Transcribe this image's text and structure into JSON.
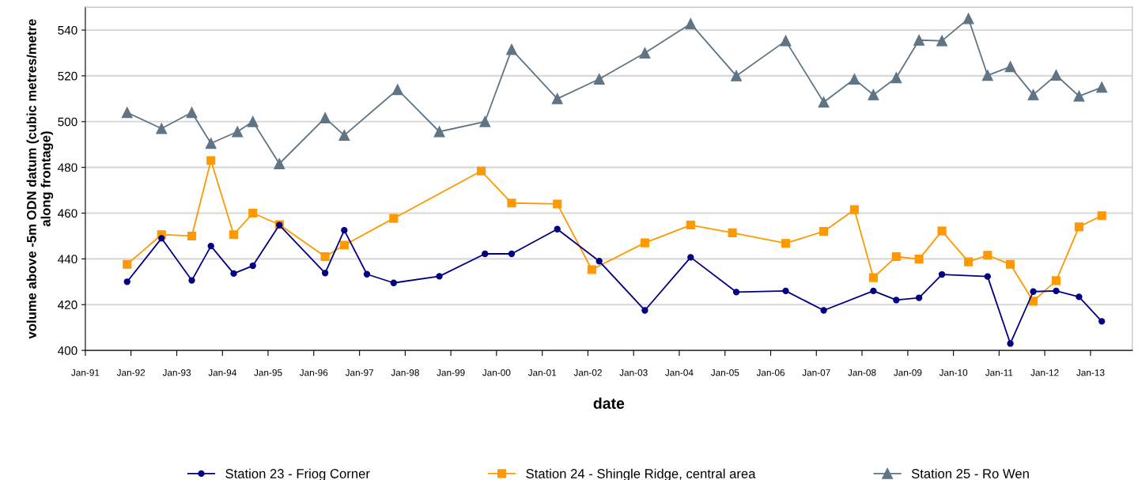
{
  "chart_data": {
    "type": "line",
    "xlabel": "date",
    "ylabel": "volume above -5m ODN datum (cubic metres/metre along frontage)",
    "xlim": [
      "1991-01",
      "2013-12"
    ],
    "xticks": [
      {
        "value": "1991-01",
        "label": "Jan-91"
      },
      {
        "value": "1992-01",
        "label": "Jan-92"
      },
      {
        "value": "1993-01",
        "label": "Jan-93"
      },
      {
        "value": "1994-01",
        "label": "Jan-94"
      },
      {
        "value": "1995-01",
        "label": "Jan-95"
      },
      {
        "value": "1996-01",
        "label": "Jan-96"
      },
      {
        "value": "1997-01",
        "label": "Jan-97"
      },
      {
        "value": "1998-01",
        "label": "Jan-98"
      },
      {
        "value": "1999-01",
        "label": "Jan-99"
      },
      {
        "value": "2000-01",
        "label": "Jan-00"
      },
      {
        "value": "2001-01",
        "label": "Jan-01"
      },
      {
        "value": "2002-01",
        "label": "Jan-02"
      },
      {
        "value": "2003-01",
        "label": "Jan-03"
      },
      {
        "value": "2004-01",
        "label": "Jan-04"
      },
      {
        "value": "2005-01",
        "label": "Jan-05"
      },
      {
        "value": "2006-01",
        "label": "Jan-06"
      },
      {
        "value": "2007-01",
        "label": "Jan-07"
      },
      {
        "value": "2008-01",
        "label": "Jan-08"
      },
      {
        "value": "2009-01",
        "label": "Jan-09"
      },
      {
        "value": "2010-01",
        "label": "Jan-10"
      },
      {
        "value": "2011-01",
        "label": "Jan-11"
      },
      {
        "value": "2012-01",
        "label": "Jan-12"
      },
      {
        "value": "2013-01",
        "label": "Jan-13"
      }
    ],
    "ylim": [
      400,
      550
    ],
    "yticks": [
      400,
      420,
      440,
      460,
      480,
      500,
      520,
      540
    ],
    "grid": "y",
    "legend": "bottom",
    "series": [
      {
        "name": "Station 23 - Friog Corner",
        "color": "#000080",
        "marker": "circle",
        "x": [
          "1991-12",
          "1992-09",
          "1993-05",
          "1993-10",
          "1994-04",
          "1994-09",
          "1995-04",
          "1996-04",
          "1996-09",
          "1997-03",
          "1997-10",
          "1998-10",
          "1999-10",
          "2000-05",
          "2001-05",
          "2002-04",
          "2003-04",
          "2004-04",
          "2005-04",
          "2006-05",
          "2007-03",
          "2008-04",
          "2008-10",
          "2009-04",
          "2009-10",
          "2010-10",
          "2011-04",
          "2011-10",
          "2012-04",
          "2012-10",
          "2013-04"
        ],
        "values": [
          430,
          449,
          430.6,
          445.6,
          433.6,
          437,
          454.8,
          433.8,
          452.5,
          433.3,
          429.5,
          432.4,
          442.2,
          442.2,
          453,
          439,
          417.5,
          440.7,
          425.5,
          426,
          417.5,
          426,
          422,
          423,
          433.2,
          432.3,
          403,
          425.7,
          426,
          423.4,
          412.7
        ]
      },
      {
        "name": "Station 24 - Shingle Ridge, central area",
        "color": "#ff9900",
        "marker": "square",
        "x": [
          "1991-12",
          "1992-09",
          "1993-05",
          "1993-10",
          "1994-04",
          "1994-09",
          "1995-04",
          "1996-04",
          "1996-09",
          "1997-10",
          "1999-09",
          "2000-05",
          "2001-05",
          "2002-02",
          "2003-04",
          "2004-04",
          "2005-03",
          "2006-05",
          "2007-03",
          "2007-11",
          "2008-04",
          "2008-10",
          "2009-04",
          "2009-10",
          "2010-05",
          "2010-10",
          "2011-04",
          "2011-10",
          "2012-04",
          "2012-10",
          "2013-04"
        ],
        "values": [
          437.6,
          450.6,
          450,
          483,
          450.6,
          460,
          455,
          441,
          446,
          457.7,
          478.4,
          464.4,
          464,
          435.3,
          447,
          454.8,
          451.4,
          446.8,
          452,
          461.5,
          431.8,
          441,
          439.9,
          452.2,
          438.7,
          441.6,
          437.6,
          421.5,
          430.5,
          454,
          458.9
        ]
      },
      {
        "name": "Station 25 - Ro Wen",
        "color": "#5f7585",
        "marker": "triangle",
        "x": [
          "1991-12",
          "1992-09",
          "1993-05",
          "1993-10",
          "1994-05",
          "1994-09",
          "1995-04",
          "1996-04",
          "1996-09",
          "1997-11",
          "1998-10",
          "1999-10",
          "2000-05",
          "2001-05",
          "2002-04",
          "2003-04",
          "2004-04",
          "2005-04",
          "2006-05",
          "2007-03",
          "2007-11",
          "2008-04",
          "2008-10",
          "2009-04",
          "2009-10",
          "2010-05",
          "2010-10",
          "2011-04",
          "2011-10",
          "2012-04",
          "2012-10",
          "2013-04"
        ],
        "values": [
          504,
          497,
          504,
          490.5,
          495.6,
          500,
          481.6,
          501.6,
          494,
          514,
          495.6,
          500,
          531.5,
          510,
          518.6,
          530,
          542.8,
          520,
          535.3,
          508.5,
          518.6,
          511.7,
          519.2,
          535.6,
          535.3,
          545,
          520.2,
          524,
          511.7,
          520.3,
          511.1,
          515
        ]
      }
    ]
  }
}
